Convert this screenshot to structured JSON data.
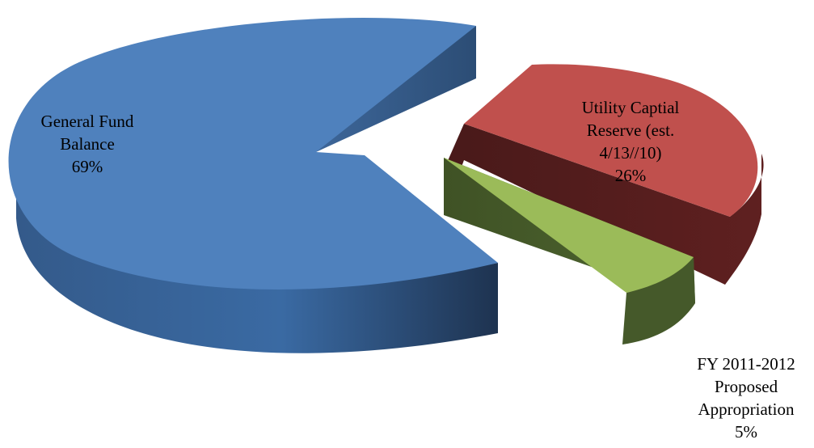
{
  "chart_data": {
    "type": "pie",
    "style": "3d-exploded",
    "legend": "none",
    "categories": [
      "General Fund Balance",
      "Utility Captial Reserve (est. 4/13//10)",
      "FY 2011-2012 Proposed Appropriation"
    ],
    "values": [
      69,
      26,
      5
    ],
    "units": "%",
    "labels": [
      {
        "lines": [
          "General Fund",
          "Balance"
        ],
        "percent": "69%"
      },
      {
        "lines": [
          "Utility Captial",
          "Reserve (est.",
          "4/13//10)"
        ],
        "percent": "26%"
      },
      {
        "lines": [
          "FY 2011-2012",
          "Proposed",
          "Appropriation"
        ],
        "percent": "5%"
      }
    ],
    "colors": {
      "top": [
        "#4f81bd",
        "#c0504d",
        "#9bbb59"
      ],
      "side": [
        "#2c4d75",
        "#5f2020",
        "#45592a"
      ]
    }
  }
}
